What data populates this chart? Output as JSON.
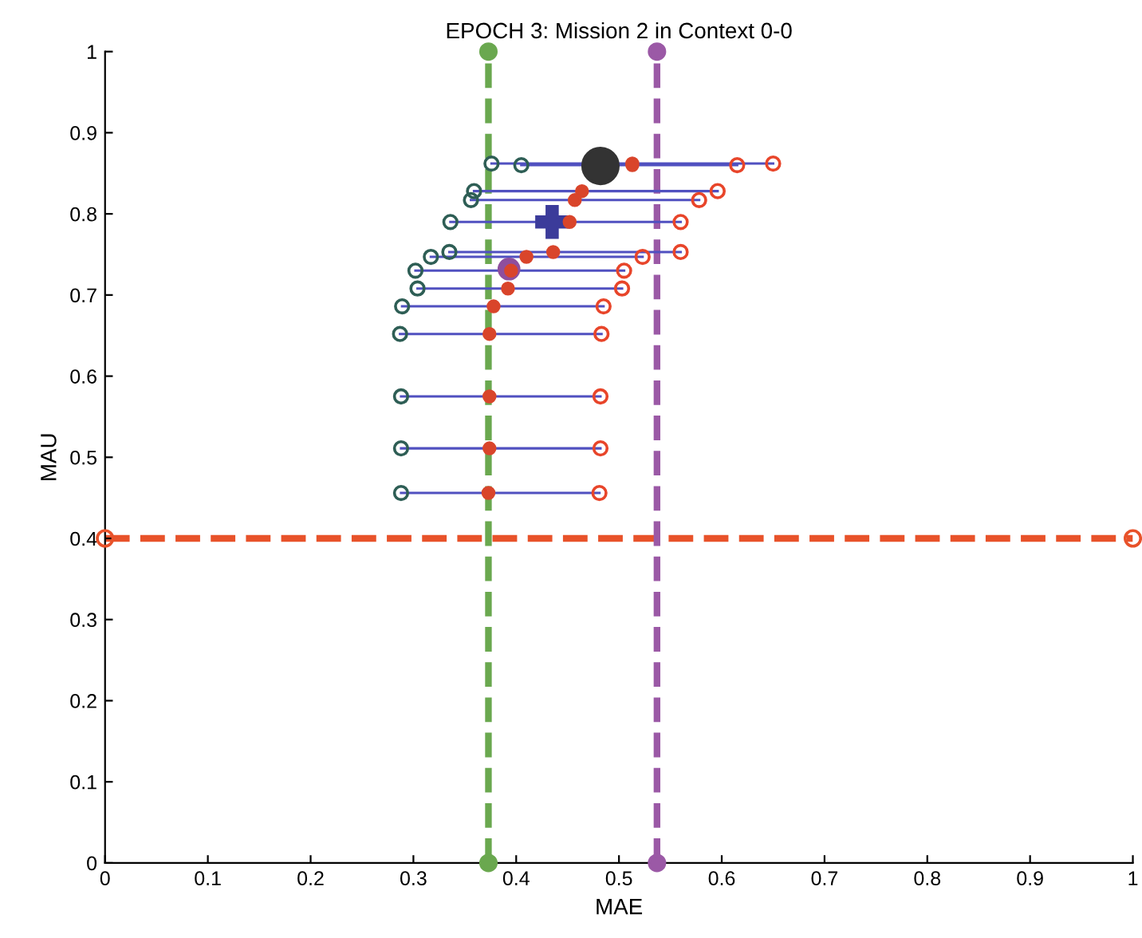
{
  "chart_data": {
    "type": "scatter",
    "title": "EPOCH 3: Mission 2 in Context 0-0",
    "xlabel": "MAE",
    "ylabel": "MAU",
    "xlim": [
      0,
      1
    ],
    "ylim": [
      0,
      1
    ],
    "xticks": [
      0,
      0.1,
      0.2,
      0.3,
      0.4,
      0.5,
      0.6,
      0.7,
      0.8,
      0.9,
      1
    ],
    "yticks": [
      0,
      0.1,
      0.2,
      0.3,
      0.4,
      0.5,
      0.6,
      0.7,
      0.8,
      0.9,
      1
    ],
    "grid": false,
    "ref_lines": [
      {
        "axis": "y",
        "value": 0.4,
        "color": "#e8522a",
        "line_style": "dashed"
      },
      {
        "axis": "x",
        "value": 0.373,
        "color": "#6aa84f",
        "line_style": "dashed"
      },
      {
        "axis": "x",
        "value": 0.537,
        "color": "#9b59a6",
        "line_style": "dashed"
      }
    ],
    "series": [
      {
        "marker": "circle",
        "color": "#d9452b",
        "x": [
          0.513,
          0.513,
          0.464,
          0.457,
          0.452,
          0.436,
          0.41,
          0.395,
          0.392,
          0.378,
          0.374,
          0.374,
          0.374,
          0.373
        ],
        "values": [
          0.862,
          0.86,
          0.828,
          0.817,
          0.79,
          0.753,
          0.747,
          0.73,
          0.708,
          0.686,
          0.652,
          0.575,
          0.511,
          0.456
        ],
        "xerrors": [
          [
            0.376,
            0.65
          ],
          [
            0.405,
            0.615
          ],
          [
            0.359,
            0.596
          ],
          [
            0.356,
            0.578
          ],
          [
            0.336,
            0.56
          ],
          [
            0.335,
            0.56
          ],
          [
            0.317,
            0.523
          ],
          [
            0.302,
            0.505
          ],
          [
            0.304,
            0.503
          ],
          [
            0.289,
            0.485
          ],
          [
            0.287,
            0.483
          ],
          [
            0.288,
            0.482
          ],
          [
            0.288,
            0.482
          ],
          [
            0.288,
            0.481
          ]
        ]
      },
      {
        "marker": "circle",
        "color": "#2e5e55",
        "x": [
          0.376,
          0.405,
          0.359,
          0.356,
          0.336,
          0.335,
          0.317,
          0.302,
          0.304,
          0.289,
          0.287,
          0.288,
          0.288,
          0.288
        ],
        "values": [
          0.862,
          0.86,
          0.828,
          0.817,
          0.79,
          0.753,
          0.747,
          0.73,
          0.708,
          0.686,
          0.652,
          0.575,
          0.511,
          0.456
        ]
      },
      {
        "marker": "circle",
        "color": "#e8452a",
        "x": [
          0.65,
          0.615,
          0.596,
          0.578,
          0.56,
          0.56,
          0.523,
          0.505,
          0.503,
          0.485,
          0.483,
          0.482,
          0.482,
          0.481
        ],
        "values": [
          0.862,
          0.86,
          0.828,
          0.817,
          0.79,
          0.753,
          0.747,
          0.73,
          0.708,
          0.686,
          0.652,
          0.575,
          0.511,
          0.456
        ]
      },
      {
        "marker": "circle",
        "color": "#333333",
        "x": [
          0.482
        ],
        "values": [
          0.859
        ]
      },
      {
        "marker": "cross",
        "color": "#3b3b9a",
        "x": [
          0.435
        ],
        "values": [
          0.79
        ]
      },
      {
        "marker": "circle",
        "color": "#8e4f9e",
        "x": [
          0.393
        ],
        "values": [
          0.732
        ]
      },
      {
        "marker": "circle",
        "color": "#6aa84f",
        "x": [
          0.373,
          0.373
        ],
        "values": [
          0,
          1
        ]
      },
      {
        "marker": "circle",
        "color": "#9b59a6",
        "x": [
          0.537,
          0.537
        ],
        "values": [
          0,
          1
        ]
      },
      {
        "marker": "circle",
        "color": "#e8522a",
        "x": [
          0,
          1
        ],
        "values": [
          0.4,
          0.4
        ]
      }
    ]
  }
}
